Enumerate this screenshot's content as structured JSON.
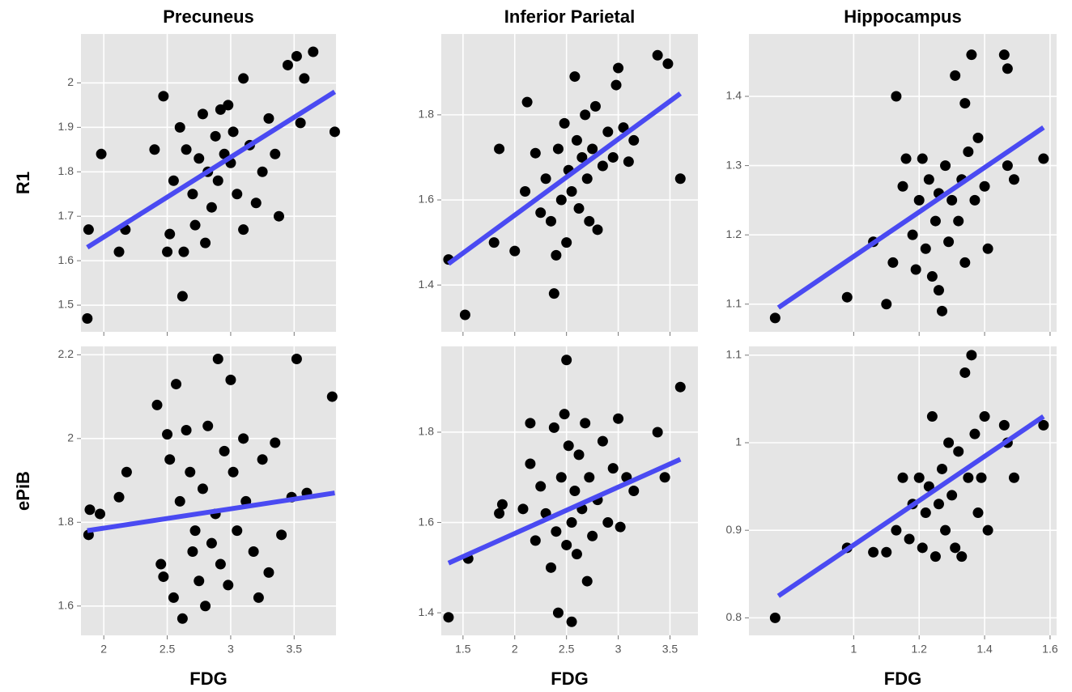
{
  "chart_data": [
    {
      "type": "scatter",
      "title": "Precuneus",
      "ylabel": "R1",
      "color": "#000000",
      "grid": true,
      "show_xtick_labels": false,
      "xlim": [
        1.82,
        3.83
      ],
      "ylim": [
        1.44,
        2.11
      ],
      "xticks": [
        2.0,
        2.5,
        3.0,
        3.5
      ],
      "yticks": [
        1.5,
        1.6,
        1.7,
        1.8,
        1.9,
        2.0
      ],
      "x": [
        1.87,
        1.88,
        1.98,
        2.12,
        2.17,
        2.4,
        2.47,
        2.5,
        2.52,
        2.55,
        2.6,
        2.62,
        2.63,
        2.65,
        2.7,
        2.72,
        2.75,
        2.78,
        2.8,
        2.82,
        2.85,
        2.88,
        2.9,
        2.92,
        2.95,
        2.98,
        3.0,
        3.02,
        3.05,
        3.1,
        3.1,
        3.15,
        3.2,
        3.25,
        3.3,
        3.35,
        3.38,
        3.45,
        3.52,
        3.55,
        3.58,
        3.65,
        3.82
      ],
      "y": [
        1.47,
        1.67,
        1.84,
        1.62,
        1.67,
        1.85,
        1.97,
        1.62,
        1.66,
        1.78,
        1.9,
        1.52,
        1.62,
        1.85,
        1.75,
        1.68,
        1.83,
        1.93,
        1.64,
        1.8,
        1.72,
        1.88,
        1.78,
        1.94,
        1.84,
        1.95,
        1.82,
        1.89,
        1.75,
        2.01,
        1.67,
        1.86,
        1.73,
        1.8,
        1.92,
        1.84,
        1.7,
        2.04,
        2.06,
        1.91,
        2.01,
        2.07,
        1.89
      ],
      "fit": {
        "color": "#4a4af2",
        "x": [
          1.87,
          3.82
        ],
        "y": [
          1.63,
          1.98
        ]
      }
    },
    {
      "type": "scatter",
      "title": "Inferior Parietal",
      "color": "#000000",
      "grid": true,
      "show_xtick_labels": false,
      "xlim": [
        1.29,
        3.77
      ],
      "ylim": [
        1.29,
        1.99
      ],
      "xticks": [
        1.5,
        2.0,
        2.5,
        3.0,
        3.5
      ],
      "yticks": [
        1.4,
        1.6,
        1.8
      ],
      "x": [
        1.36,
        1.52,
        1.8,
        1.85,
        2.0,
        2.1,
        2.12,
        2.2,
        2.25,
        2.3,
        2.35,
        2.38,
        2.4,
        2.42,
        2.45,
        2.48,
        2.5,
        2.52,
        2.55,
        2.58,
        2.6,
        2.62,
        2.65,
        2.68,
        2.7,
        2.72,
        2.75,
        2.78,
        2.8,
        2.85,
        2.9,
        2.95,
        2.98,
        3.0,
        3.05,
        3.1,
        3.15,
        3.38,
        3.48,
        3.6
      ],
      "y": [
        1.46,
        1.33,
        1.5,
        1.72,
        1.48,
        1.62,
        1.83,
        1.71,
        1.57,
        1.65,
        1.55,
        1.38,
        1.47,
        1.72,
        1.6,
        1.78,
        1.5,
        1.67,
        1.62,
        1.89,
        1.74,
        1.58,
        1.7,
        1.8,
        1.65,
        1.55,
        1.72,
        1.82,
        1.53,
        1.68,
        1.76,
        1.7,
        1.87,
        1.91,
        1.77,
        1.69,
        1.74,
        1.94,
        1.92,
        1.65
      ],
      "fit": {
        "color": "#4a4af2",
        "x": [
          1.36,
          3.6
        ],
        "y": [
          1.45,
          1.85
        ]
      }
    },
    {
      "type": "scatter",
      "title": "Hippocampus",
      "color": "#000000",
      "grid": true,
      "show_xtick_labels": false,
      "xlim": [
        0.68,
        1.62
      ],
      "ylim": [
        1.06,
        1.49
      ],
      "xticks": [
        1.0,
        1.2,
        1.4,
        1.6
      ],
      "yticks": [
        1.1,
        1.2,
        1.3,
        1.4
      ],
      "x": [
        0.76,
        0.98,
        1.06,
        1.1,
        1.12,
        1.13,
        1.15,
        1.16,
        1.18,
        1.19,
        1.2,
        1.21,
        1.22,
        1.23,
        1.24,
        1.25,
        1.26,
        1.26,
        1.27,
        1.28,
        1.29,
        1.3,
        1.31,
        1.32,
        1.33,
        1.34,
        1.34,
        1.35,
        1.36,
        1.37,
        1.38,
        1.4,
        1.41,
        1.46,
        1.47,
        1.47,
        1.49,
        1.58
      ],
      "y": [
        1.08,
        1.11,
        1.19,
        1.1,
        1.16,
        1.4,
        1.27,
        1.31,
        1.2,
        1.15,
        1.25,
        1.31,
        1.18,
        1.28,
        1.14,
        1.22,
        1.12,
        1.26,
        1.09,
        1.3,
        1.19,
        1.25,
        1.43,
        1.22,
        1.28,
        1.39,
        1.16,
        1.32,
        1.46,
        1.25,
        1.34,
        1.27,
        1.18,
        1.46,
        1.3,
        1.44,
        1.28,
        1.31
      ],
      "fit": {
        "color": "#4a4af2",
        "x": [
          0.77,
          1.58
        ],
        "y": [
          1.095,
          1.355
        ]
      }
    },
    {
      "type": "scatter",
      "ylabel": "ePiB",
      "xlabel": "FDG",
      "color": "#000000",
      "grid": true,
      "show_xtick_labels": true,
      "xlim": [
        1.82,
        3.83
      ],
      "ylim": [
        1.53,
        2.22
      ],
      "xticks": [
        2.0,
        2.5,
        3.0,
        3.5
      ],
      "yticks": [
        1.6,
        1.8,
        2.0,
        2.2
      ],
      "x": [
        1.88,
        1.89,
        1.97,
        2.12,
        2.18,
        2.42,
        2.45,
        2.47,
        2.5,
        2.52,
        2.55,
        2.57,
        2.6,
        2.62,
        2.65,
        2.68,
        2.7,
        2.72,
        2.75,
        2.78,
        2.8,
        2.82,
        2.85,
        2.88,
        2.9,
        2.92,
        2.95,
        2.98,
        3.0,
        3.02,
        3.05,
        3.1,
        3.12,
        3.18,
        3.22,
        3.25,
        3.3,
        3.35,
        3.4,
        3.48,
        3.52,
        3.6,
        3.8
      ],
      "y": [
        1.77,
        1.83,
        1.82,
        1.86,
        1.92,
        2.08,
        1.7,
        1.67,
        2.01,
        1.95,
        1.62,
        2.13,
        1.85,
        1.57,
        2.02,
        1.92,
        1.73,
        1.78,
        1.66,
        1.88,
        1.6,
        2.03,
        1.75,
        1.82,
        2.19,
        1.7,
        1.97,
        1.65,
        2.14,
        1.92,
        1.78,
        2.0,
        1.85,
        1.73,
        1.62,
        1.95,
        1.68,
        1.99,
        1.77,
        1.86,
        2.19,
        1.87,
        2.1
      ],
      "fit": {
        "color": "#4a4af2",
        "x": [
          1.87,
          3.82
        ],
        "y": [
          1.78,
          1.87
        ]
      }
    },
    {
      "type": "scatter",
      "xlabel": "FDG",
      "color": "#000000",
      "grid": true,
      "show_xtick_labels": true,
      "xlim": [
        1.29,
        3.77
      ],
      "ylim": [
        1.35,
        1.99
      ],
      "xticks": [
        1.5,
        2.0,
        2.5,
        3.0,
        3.5
      ],
      "yticks": [
        1.4,
        1.6,
        1.8
      ],
      "x": [
        1.36,
        1.55,
        1.85,
        1.88,
        2.08,
        2.15,
        2.15,
        2.2,
        2.25,
        2.3,
        2.35,
        2.38,
        2.4,
        2.42,
        2.45,
        2.48,
        2.5,
        2.5,
        2.52,
        2.55,
        2.55,
        2.58,
        2.6,
        2.62,
        2.65,
        2.68,
        2.7,
        2.72,
        2.75,
        2.8,
        2.85,
        2.9,
        2.95,
        3.0,
        3.02,
        3.08,
        3.15,
        3.38,
        3.45,
        3.6
      ],
      "y": [
        1.39,
        1.52,
        1.62,
        1.64,
        1.63,
        1.82,
        1.73,
        1.56,
        1.68,
        1.62,
        1.5,
        1.81,
        1.58,
        1.4,
        1.7,
        1.84,
        1.55,
        1.96,
        1.77,
        1.38,
        1.6,
        1.67,
        1.53,
        1.75,
        1.63,
        1.82,
        1.47,
        1.7,
        1.57,
        1.65,
        1.78,
        1.6,
        1.72,
        1.83,
        1.59,
        1.7,
        1.67,
        1.8,
        1.7,
        1.9
      ],
      "fit": {
        "color": "#4a4af2",
        "x": [
          1.36,
          3.6
        ],
        "y": [
          1.51,
          1.74
        ]
      }
    },
    {
      "type": "scatter",
      "xlabel": "FDG",
      "color": "#000000",
      "grid": true,
      "show_xtick_labels": true,
      "xlim": [
        0.68,
        1.62
      ],
      "ylim": [
        0.78,
        1.11
      ],
      "xticks": [
        1.0,
        1.2,
        1.4,
        1.6
      ],
      "yticks": [
        0.8,
        0.9,
        1.0,
        1.1
      ],
      "x": [
        0.76,
        0.98,
        1.06,
        1.1,
        1.13,
        1.15,
        1.17,
        1.18,
        1.2,
        1.21,
        1.22,
        1.23,
        1.24,
        1.25,
        1.26,
        1.27,
        1.28,
        1.29,
        1.3,
        1.31,
        1.32,
        1.33,
        1.34,
        1.35,
        1.36,
        1.37,
        1.38,
        1.39,
        1.4,
        1.41,
        1.46,
        1.47,
        1.49,
        1.58
      ],
      "y": [
        0.8,
        0.88,
        0.875,
        0.875,
        0.9,
        0.96,
        0.89,
        0.93,
        0.96,
        0.88,
        0.92,
        0.95,
        1.03,
        0.87,
        0.93,
        0.97,
        0.9,
        1.0,
        0.94,
        0.88,
        0.99,
        0.87,
        1.08,
        0.96,
        1.1,
        1.01,
        0.92,
        0.96,
        1.03,
        0.9,
        1.02,
        1.0,
        0.96,
        1.02
      ],
      "fit": {
        "color": "#4a4af2",
        "x": [
          0.77,
          1.58
        ],
        "y": [
          0.825,
          1.03
        ]
      }
    }
  ]
}
